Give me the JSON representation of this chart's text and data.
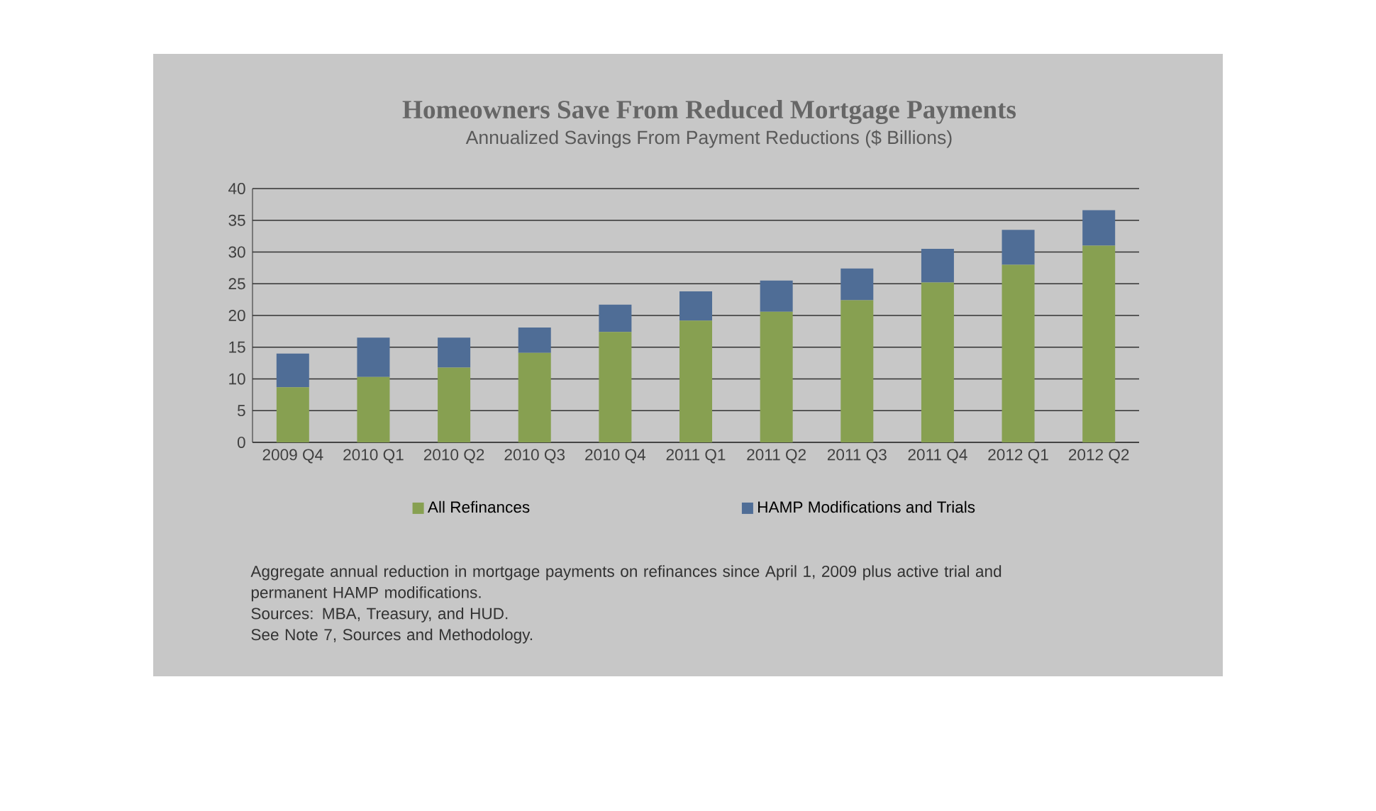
{
  "chart_data": {
    "type": "bar",
    "title": "Homeowners Save From Reduced Mortgage Payments",
    "subtitle": "Annualized Savings From Payment Reductions ($ Billions)",
    "categories": [
      "2009 Q4",
      "2010 Q1",
      "2010 Q2",
      "2010 Q3",
      "2010 Q4",
      "2011 Q1",
      "2011 Q2",
      "2011 Q3",
      "2011 Q4",
      "2012 Q1",
      "2012 Q2"
    ],
    "series": [
      {
        "name": "All Refinances",
        "color": "#87a051",
        "values": [
          8.7,
          10.3,
          11.8,
          14.1,
          17.4,
          19.2,
          20.6,
          22.4,
          25.2,
          28.0,
          31.0
        ]
      },
      {
        "name": "HAMP Modifications and Trials",
        "color": "#4f6d96",
        "values": [
          5.3,
          6.2,
          4.7,
          4.0,
          4.3,
          4.6,
          4.9,
          5.0,
          5.3,
          5.5,
          5.6
        ]
      }
    ],
    "stacked": true,
    "ylim": [
      0,
      40
    ],
    "yticks": [
      0,
      5,
      10,
      15,
      20,
      25,
      30,
      35,
      40
    ],
    "grid": "y",
    "legend": "bottom",
    "annotations": [
      "Aggregate annual reduction in mortgage payments on refinances since April 1, 2009 plus active trial and permanent HAMP modifications.",
      "Sources:  MBA, Treasury, and HUD.",
      "See Note 7, Sources and Methodology."
    ]
  }
}
